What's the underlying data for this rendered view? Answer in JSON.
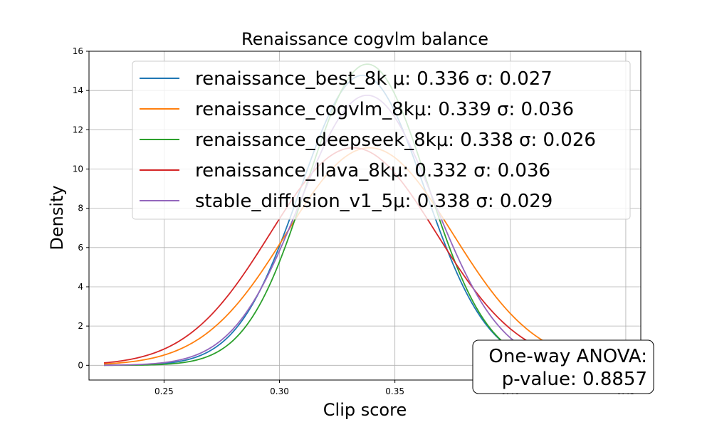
{
  "chart_data": {
    "type": "line",
    "title": "Renaissance cogvlm balance",
    "xlabel": "Clip score",
    "ylabel": "Density",
    "xlim": [
      0.2175,
      0.4565
    ],
    "ylim": [
      -0.75,
      16
    ],
    "xticks": [
      0.25,
      0.3,
      0.35,
      0.4,
      0.45
    ],
    "xtick_labels": [
      "0.25",
      "0.30",
      "0.35",
      "0.40",
      "0.45"
    ],
    "yticks": [
      0,
      2,
      4,
      6,
      8,
      10,
      12,
      14,
      16
    ],
    "ytick_labels": [
      "0",
      "2",
      "4",
      "6",
      "8",
      "10",
      "12",
      "14",
      "16"
    ],
    "grid": true,
    "legend_position": "top-right",
    "series": [
      {
        "name": "renaissance_best_8k",
        "legend_label": "renaissance_best_8k μ: 0.336 σ: 0.027",
        "mu": 0.336,
        "sigma": 0.027,
        "x_range": [
          0.224,
          0.448
        ],
        "color": "#1f77b4"
      },
      {
        "name": "renaissance_cogvlm_8k",
        "legend_label": "renaissance_cogvlm_8kμ: 0.339 σ: 0.036",
        "mu": 0.339,
        "sigma": 0.036,
        "x_range": [
          0.224,
          0.448
        ],
        "color": "#ff7f0e"
      },
      {
        "name": "renaissance_deepseek_8k",
        "legend_label": "renaissance_deepseek_8kμ: 0.338 σ: 0.026",
        "mu": 0.338,
        "sigma": 0.026,
        "x_range": [
          0.224,
          0.448
        ],
        "color": "#2ca02c"
      },
      {
        "name": "renaissance_llava_8k",
        "legend_label": "renaissance_llava_8kμ: 0.332 σ: 0.036",
        "mu": 0.332,
        "sigma": 0.036,
        "x_range": [
          0.224,
          0.448
        ],
        "color": "#d62728"
      },
      {
        "name": "stable_diffusion_v1_5",
        "legend_label": "stable_diffusion_v1_5μ: 0.338 σ: 0.029",
        "mu": 0.338,
        "sigma": 0.029,
        "x_range": [
          0.224,
          0.448
        ],
        "color": "#9467bd"
      }
    ],
    "annotation": {
      "line1": "One-way ANOVA:",
      "line2": "p-value: 0.8857"
    }
  }
}
